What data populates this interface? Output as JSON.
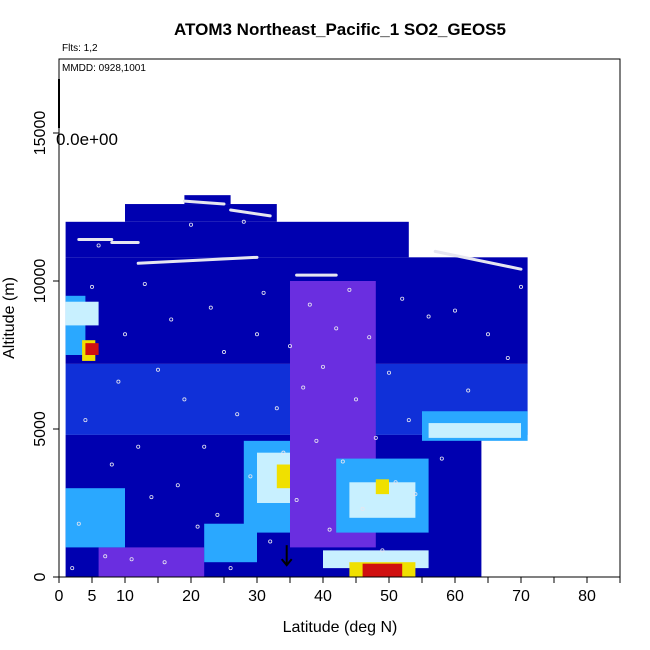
{
  "chart_data": {
    "type": "heatmap",
    "title": "ATOM3 Northeast_Pacific_1 SO2_GEOS5",
    "annotations": {
      "flights": "Flts: 1,2",
      "dates": "MMDD: 0928,1001",
      "colorbar_value": "0.0e+00"
    },
    "xlabel": "Latitude (deg N)",
    "ylabel": "Altitude (m)",
    "xlim": [
      0,
      85
    ],
    "ylim": [
      0,
      17500
    ],
    "xticks": [
      0,
      5,
      10,
      20,
      30,
      40,
      50,
      60,
      70,
      80
    ],
    "xtick_labels": [
      "0",
      "5",
      "10",
      "20",
      "30",
      "40",
      "50",
      "60",
      "70",
      "80"
    ],
    "minor_xticks": [
      15,
      25,
      35,
      45,
      55,
      65,
      75,
      85
    ],
    "yticks": [
      0,
      5000,
      10000,
      15000
    ],
    "ytick_labels": [
      "0",
      "5000",
      "10000",
      "15000"
    ],
    "marker": {
      "x": 34.5,
      "y": 400,
      "type": "down-arrow"
    },
    "grid": false,
    "colors": {
      "dark_blue": "#0000b0",
      "mid_blue": "#1030d8",
      "purple": "#6a2ee0",
      "light_blue": "#2aa8ff",
      "pale_cyan": "#c8f0ff",
      "yellow": "#f0e000",
      "red": "#d01010",
      "flight_points": "#e6e6f0"
    },
    "regions": [
      {
        "x": [
          1,
          71
        ],
        "y": [
          4800,
          7200
        ],
        "level": "mid_blue"
      },
      {
        "x": [
          1,
          71
        ],
        "y": [
          7200,
          10800
        ],
        "level": "dark_blue"
      },
      {
        "x": [
          1,
          53
        ],
        "y": [
          10800,
          12000
        ],
        "level": "dark_blue"
      },
      {
        "x": [
          10,
          33
        ],
        "y": [
          12000,
          12600
        ],
        "level": "dark_blue"
      },
      {
        "x": [
          19,
          26
        ],
        "y": [
          12600,
          12900
        ],
        "level": "dark_blue"
      },
      {
        "x": [
          1,
          64
        ],
        "y": [
          0,
          4800
        ],
        "level": "dark_blue"
      },
      {
        "x": [
          1,
          4
        ],
        "y": [
          7500,
          9500
        ],
        "level": "light_blue"
      },
      {
        "x": [
          1,
          6
        ],
        "y": [
          8500,
          9300
        ],
        "level": "pale_cyan"
      },
      {
        "x": [
          3.5,
          5.5
        ],
        "y": [
          7300,
          8000
        ],
        "level": "yellow"
      },
      {
        "x": [
          4,
          6
        ],
        "y": [
          7500,
          7900
        ],
        "level": "red"
      },
      {
        "x": [
          28,
          37
        ],
        "y": [
          1500,
          4600
        ],
        "level": "light_blue"
      },
      {
        "x": [
          30,
          35
        ],
        "y": [
          2500,
          4200
        ],
        "level": "pale_cyan"
      },
      {
        "x": [
          33,
          35
        ],
        "y": [
          3000,
          3800
        ],
        "level": "yellow"
      },
      {
        "x": [
          35,
          48
        ],
        "y": [
          1000,
          10000
        ],
        "level": "purple"
      },
      {
        "x": [
          42,
          56
        ],
        "y": [
          1500,
          4000
        ],
        "level": "light_blue"
      },
      {
        "x": [
          44,
          54
        ],
        "y": [
          2000,
          3200
        ],
        "level": "pale_cyan"
      },
      {
        "x": [
          48,
          50
        ],
        "y": [
          2800,
          3300
        ],
        "level": "yellow"
      },
      {
        "x": [
          55,
          71
        ],
        "y": [
          4600,
          5600
        ],
        "level": "light_blue"
      },
      {
        "x": [
          56,
          70
        ],
        "y": [
          4700,
          5200
        ],
        "level": "pale_cyan"
      },
      {
        "x": [
          6,
          22
        ],
        "y": [
          0,
          1000
        ],
        "level": "purple"
      },
      {
        "x": [
          40,
          56
        ],
        "y": [
          300,
          900
        ],
        "level": "pale_cyan"
      },
      {
        "x": [
          44,
          54
        ],
        "y": [
          0,
          500
        ],
        "level": "yellow"
      },
      {
        "x": [
          46,
          52
        ],
        "y": [
          0,
          450
        ],
        "level": "red"
      },
      {
        "x": [
          1,
          10
        ],
        "y": [
          1000,
          3000
        ],
        "level": "light_blue"
      },
      {
        "x": [
          22,
          30
        ],
        "y": [
          500,
          1800
        ],
        "level": "light_blue"
      }
    ],
    "flight_tracks": [
      {
        "x": [
          3,
          8
        ],
        "y": [
          11400,
          11400
        ]
      },
      {
        "x": [
          8,
          12
        ],
        "y": [
          11300,
          11300
        ]
      },
      {
        "x": [
          12,
          30
        ],
        "y": [
          10600,
          10800
        ]
      },
      {
        "x": [
          19,
          25
        ],
        "y": [
          12700,
          12600
        ]
      },
      {
        "x": [
          26,
          32
        ],
        "y": [
          12400,
          12200
        ]
      },
      {
        "x": [
          57,
          70
        ],
        "y": [
          11000,
          10400
        ]
      },
      {
        "x": [
          36,
          42
        ],
        "y": [
          10200,
          10200
        ]
      }
    ],
    "flight_points": [
      {
        "x": 2,
        "y": 300
      },
      {
        "x": 3,
        "y": 1800
      },
      {
        "x": 4,
        "y": 5300
      },
      {
        "x": 5,
        "y": 9800
      },
      {
        "x": 6,
        "y": 11200
      },
      {
        "x": 7,
        "y": 700
      },
      {
        "x": 8,
        "y": 3800
      },
      {
        "x": 9,
        "y": 6600
      },
      {
        "x": 10,
        "y": 8200
      },
      {
        "x": 11,
        "y": 600
      },
      {
        "x": 12,
        "y": 4400
      },
      {
        "x": 13,
        "y": 9900
      },
      {
        "x": 14,
        "y": 2700
      },
      {
        "x": 15,
        "y": 7000
      },
      {
        "x": 16,
        "y": 500
      },
      {
        "x": 17,
        "y": 8700
      },
      {
        "x": 18,
        "y": 3100
      },
      {
        "x": 19,
        "y": 6000
      },
      {
        "x": 20,
        "y": 11900
      },
      {
        "x": 21,
        "y": 1700
      },
      {
        "x": 22,
        "y": 4400
      },
      {
        "x": 23,
        "y": 9100
      },
      {
        "x": 24,
        "y": 2100
      },
      {
        "x": 25,
        "y": 7600
      },
      {
        "x": 26,
        "y": 300
      },
      {
        "x": 27,
        "y": 5500
      },
      {
        "x": 28,
        "y": 12000
      },
      {
        "x": 29,
        "y": 3400
      },
      {
        "x": 30,
        "y": 8200
      },
      {
        "x": 31,
        "y": 9600
      },
      {
        "x": 32,
        "y": 1200
      },
      {
        "x": 33,
        "y": 5700
      },
      {
        "x": 34,
        "y": 4200
      },
      {
        "x": 35,
        "y": 7800
      },
      {
        "x": 36,
        "y": 2600
      },
      {
        "x": 37,
        "y": 6400
      },
      {
        "x": 38,
        "y": 9200
      },
      {
        "x": 39,
        "y": 4600
      },
      {
        "x": 40,
        "y": 7100
      },
      {
        "x": 41,
        "y": 1600
      },
      {
        "x": 42,
        "y": 8400
      },
      {
        "x": 43,
        "y": 3900
      },
      {
        "x": 44,
        "y": 9700
      },
      {
        "x": 45,
        "y": 6000
      },
      {
        "x": 46,
        "y": 2300
      },
      {
        "x": 47,
        "y": 8100
      },
      {
        "x": 48,
        "y": 4700
      },
      {
        "x": 49,
        "y": 900
      },
      {
        "x": 50,
        "y": 6900
      },
      {
        "x": 51,
        "y": 3200
      },
      {
        "x": 52,
        "y": 9400
      },
      {
        "x": 53,
        "y": 5300
      },
      {
        "x": 54,
        "y": 2800
      },
      {
        "x": 56,
        "y": 8800
      },
      {
        "x": 58,
        "y": 4000
      },
      {
        "x": 60,
        "y": 9000
      },
      {
        "x": 62,
        "y": 6300
      },
      {
        "x": 65,
        "y": 8200
      },
      {
        "x": 68,
        "y": 7400
      },
      {
        "x": 70,
        "y": 9800
      }
    ]
  }
}
